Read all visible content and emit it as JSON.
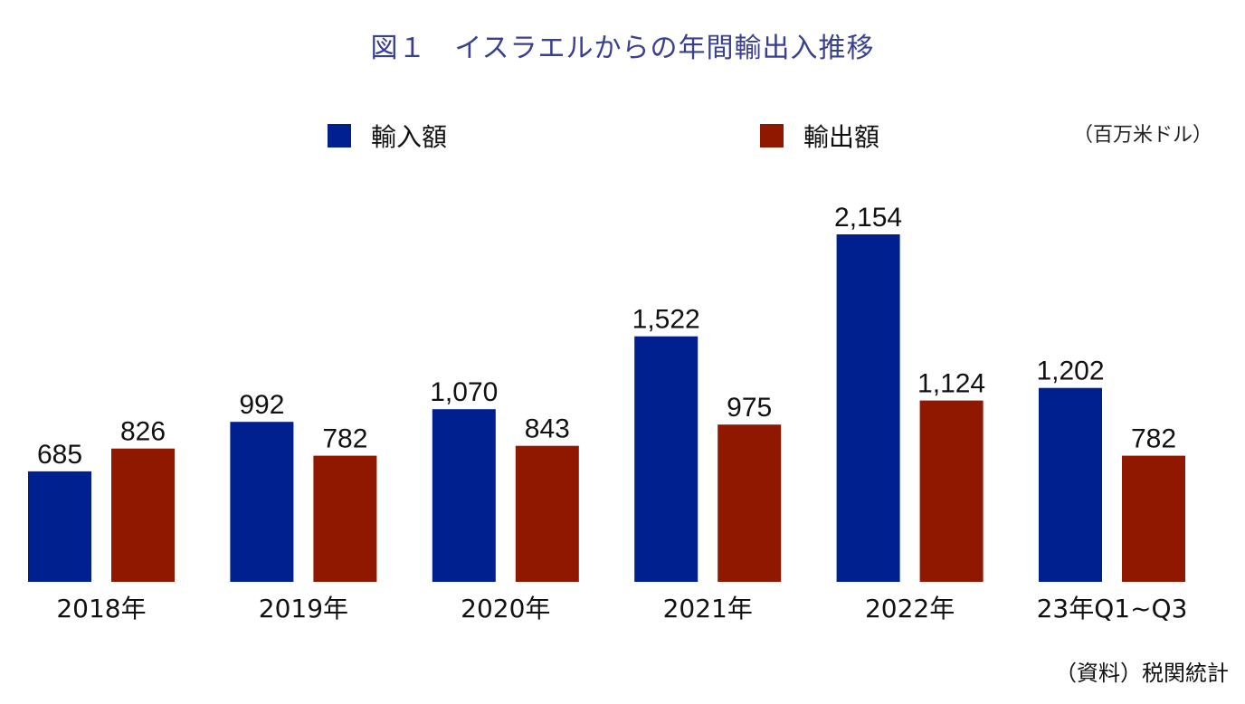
{
  "chart_data": {
    "type": "bar",
    "title": "図１　イスラエルからの年間輸出入推移",
    "unit": "（百万米ドル）",
    "source": "（資料）税関統計",
    "categories": [
      "2018年",
      "2019年",
      "2020年",
      "2021年",
      "2022年",
      "23年Q1~Q3"
    ],
    "series": [
      {
        "name": "輸入額",
        "color": "#002090",
        "values": [
          685,
          992,
          1070,
          1522,
          2154,
          1202
        ],
        "labels": [
          "685",
          "992",
          "1,070",
          "1,522",
          "2,154",
          "1,202"
        ]
      },
      {
        "name": "輸出額",
        "color": "#901800",
        "values": [
          826,
          782,
          843,
          975,
          1124,
          782
        ],
        "labels": [
          "826",
          "782",
          "843",
          "975",
          "1,124",
          "782"
        ]
      }
    ],
    "ylim": [
      0,
      2154
    ],
    "grid": false,
    "legend": "top"
  }
}
